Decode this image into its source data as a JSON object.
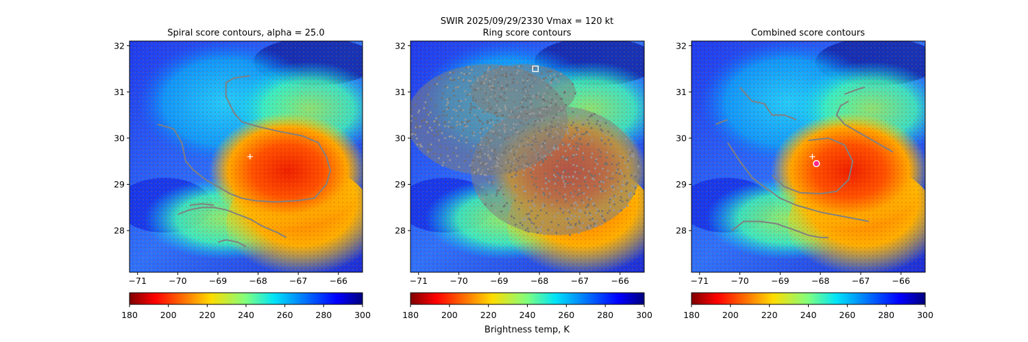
{
  "figure": {
    "suptitle_line1": "SWIR  2025/09/29/2330    Vmax = 120 kt",
    "colorbar_label": "Brightness temp, K"
  },
  "chart_data": [
    {
      "type": "heatmap",
      "title": "Spiral score contours, alpha = 25.0",
      "xlim": [
        -71.2,
        -65.4
      ],
      "ylim": [
        27.1,
        32.1
      ],
      "xticks": [
        -71,
        -70,
        -69,
        -68,
        -67,
        -66
      ],
      "yticks": [
        28,
        29,
        30,
        31,
        32
      ],
      "grid": false,
      "colorbar": {
        "min": 180,
        "max": 300,
        "ticks": [
          180,
          200,
          220,
          240,
          260,
          280,
          300
        ],
        "cmap": "jet_r"
      },
      "center_marker": {
        "symbol": "+",
        "lon": -68.2,
        "lat": 29.6
      },
      "contours": [
        [
          [
            -70.5,
            30.3
          ],
          [
            -70.1,
            30.2
          ],
          [
            -69.9,
            29.9
          ],
          [
            -69.8,
            29.5
          ],
          [
            -69.6,
            29.3
          ],
          [
            -69.3,
            29.1
          ],
          [
            -69.0,
            28.95
          ],
          [
            -68.7,
            28.8
          ],
          [
            -68.4,
            28.7
          ],
          [
            -68.1,
            28.65
          ],
          [
            -67.6,
            28.62
          ],
          [
            -67.0,
            28.65
          ],
          [
            -66.6,
            28.7
          ],
          [
            -66.3,
            29.0
          ],
          [
            -66.2,
            29.3
          ],
          [
            -66.3,
            29.6
          ],
          [
            -66.5,
            29.9
          ],
          [
            -66.9,
            30.05
          ],
          [
            -67.5,
            30.15
          ],
          [
            -68.0,
            30.25
          ],
          [
            -68.4,
            30.35
          ],
          [
            -68.6,
            30.55
          ],
          [
            -68.8,
            30.9
          ],
          [
            -68.8,
            31.2
          ],
          [
            -68.6,
            31.3
          ],
          [
            -68.2,
            31.35
          ]
        ],
        [
          [
            -70.0,
            28.35
          ],
          [
            -69.7,
            28.45
          ],
          [
            -69.4,
            28.5
          ],
          [
            -69.1,
            28.5
          ],
          [
            -68.8,
            28.45
          ],
          [
            -68.5,
            28.35
          ],
          [
            -68.2,
            28.25
          ],
          [
            -67.9,
            28.1
          ],
          [
            -67.5,
            27.95
          ],
          [
            -67.3,
            27.85
          ]
        ],
        [
          [
            -69.7,
            28.55
          ],
          [
            -69.4,
            28.58
          ],
          [
            -69.1,
            28.55
          ]
        ],
        [
          [
            -69.0,
            27.75
          ],
          [
            -68.8,
            27.8
          ],
          [
            -68.5,
            27.75
          ],
          [
            -68.3,
            27.65
          ]
        ]
      ]
    },
    {
      "type": "heatmap",
      "title": "Ring score contours",
      "xlim": [
        -71.2,
        -65.4
      ],
      "ylim": [
        27.1,
        32.1
      ],
      "xticks": [
        -71,
        -70,
        -69,
        -68,
        -67,
        -66
      ],
      "yticks": [
        28,
        29,
        30,
        31,
        32
      ],
      "grid": false,
      "colorbar": {
        "min": 180,
        "max": 300,
        "ticks": [
          180,
          200,
          220,
          240,
          260,
          280,
          300
        ],
        "cmap": "jet_r"
      },
      "center_marker": {
        "symbol": "square",
        "lon": -68.1,
        "lat": 31.5
      },
      "contour_regions": [
        {
          "lon": -69.3,
          "lat": 30.4,
          "rx_deg": 2.0,
          "ry_deg": 1.2
        },
        {
          "lon": -67.6,
          "lat": 29.3,
          "rx_deg": 2.1,
          "ry_deg": 1.4
        },
        {
          "lon": -68.4,
          "lat": 31.0,
          "rx_deg": 1.3,
          "ry_deg": 0.6
        }
      ]
    },
    {
      "type": "heatmap",
      "title": "Combined score contours",
      "xlim": [
        -71.2,
        -65.4
      ],
      "ylim": [
        27.1,
        32.1
      ],
      "xticks": [
        -71,
        -70,
        -69,
        -68,
        -67,
        -66
      ],
      "yticks": [
        28,
        29,
        30,
        31,
        32
      ],
      "grid": false,
      "colorbar": {
        "min": 180,
        "max": 300,
        "ticks": [
          180,
          200,
          220,
          240,
          260,
          280,
          300
        ],
        "cmap": "jet_r"
      },
      "center_marker": {
        "symbol": "+",
        "lon": -68.2,
        "lat": 29.6
      },
      "best_center": {
        "symbol": "circle",
        "lon": -68.1,
        "lat": 29.45
      },
      "contours": [
        [
          [
            -69.2,
            29.2
          ],
          [
            -68.9,
            28.95
          ],
          [
            -68.5,
            28.82
          ],
          [
            -68.0,
            28.8
          ],
          [
            -67.6,
            28.85
          ],
          [
            -67.3,
            29.1
          ],
          [
            -67.2,
            29.5
          ],
          [
            -67.4,
            29.85
          ],
          [
            -67.8,
            30.0
          ],
          [
            -68.3,
            29.95
          ]
        ],
        [
          [
            -70.3,
            29.9
          ],
          [
            -70.0,
            29.5
          ],
          [
            -69.7,
            29.15
          ],
          [
            -69.4,
            28.95
          ],
          [
            -69.0,
            28.7
          ],
          [
            -68.6,
            28.55
          ],
          [
            -68.0,
            28.4
          ],
          [
            -67.4,
            28.3
          ],
          [
            -66.8,
            28.2
          ]
        ],
        [
          [
            -70.2,
            28.0
          ],
          [
            -69.9,
            28.2
          ],
          [
            -69.5,
            28.2
          ],
          [
            -69.1,
            28.15
          ],
          [
            -68.6,
            28.0
          ],
          [
            -68.3,
            27.9
          ],
          [
            -68.0,
            27.85
          ],
          [
            -67.8,
            27.85
          ]
        ],
        [
          [
            -67.3,
            30.8
          ],
          [
            -67.5,
            30.7
          ],
          [
            -67.6,
            30.5
          ],
          [
            -67.4,
            30.3
          ],
          [
            -67.0,
            30.1
          ],
          [
            -66.6,
            29.9
          ],
          [
            -66.4,
            29.8
          ],
          [
            -66.2,
            29.7
          ]
        ],
        [
          [
            -67.4,
            30.95
          ],
          [
            -67.1,
            31.05
          ],
          [
            -66.9,
            31.1
          ]
        ],
        [
          [
            -70.0,
            31.1
          ],
          [
            -69.7,
            30.8
          ],
          [
            -69.4,
            30.75
          ],
          [
            -69.2,
            30.5
          ],
          [
            -68.9,
            30.5
          ],
          [
            -68.6,
            30.4
          ]
        ],
        [
          [
            -70.6,
            30.3
          ],
          [
            -70.3,
            30.4
          ]
        ]
      ]
    }
  ]
}
